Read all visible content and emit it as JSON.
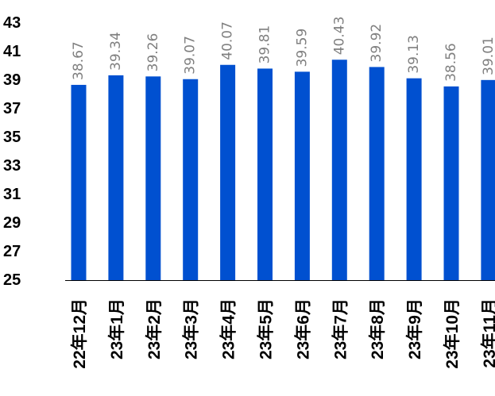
{
  "chart_data": {
    "type": "bar",
    "title": "",
    "xlabel": "",
    "ylabel": "",
    "categories": [
      "22年12月",
      "23年1月",
      "23年2月",
      "23年3月",
      "23年4月",
      "23年5月",
      "23年6月",
      "23年7月",
      "23年8月",
      "23年9月",
      "23年10月",
      "23年11月"
    ],
    "values": [
      38.67,
      39.34,
      39.26,
      39.07,
      40.07,
      39.81,
      39.59,
      40.43,
      39.92,
      39.13,
      38.56,
      39.01
    ],
    "data_labels": [
      "38.67",
      "39.34",
      "39.26",
      "39.07",
      "40.07",
      "39.81",
      "39.59",
      "40.43",
      "39.92",
      "39.13",
      "38.56",
      "39.01"
    ],
    "ylim": [
      25,
      43
    ],
    "yticks": [
      "25",
      "27",
      "29",
      "31",
      "33",
      "35",
      "37",
      "39",
      "41",
      "43"
    ],
    "grid": false,
    "legend": "none",
    "bar_color": "#0050d0",
    "axis_color": "#000000",
    "label_color": "#7f7f7f"
  }
}
